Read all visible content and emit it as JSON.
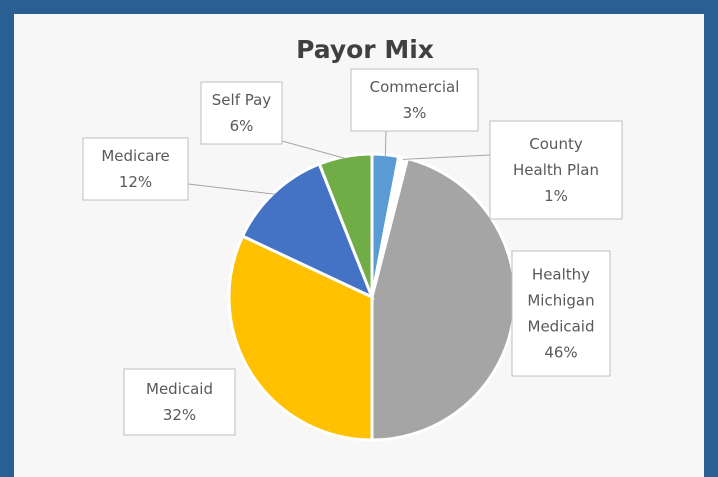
{
  "chart_data": {
    "type": "pie",
    "title": "Payor Mix",
    "slices": [
      {
        "label": "Commercial",
        "value": 3,
        "value_label": "3%",
        "color": "#5b9bd5"
      },
      {
        "label": "County Health Plan",
        "value": 1,
        "value_label": "1%",
        "color": "#ffffff"
      },
      {
        "label": "Healthy Michigan Medicaid",
        "value": 46,
        "value_label": "46%",
        "color": "#a5a5a5"
      },
      {
        "label": "Medicaid",
        "value": 32,
        "value_label": "32%",
        "color": "#ffc000"
      },
      {
        "label": "Medicare",
        "value": 12,
        "value_label": "12%",
        "color": "#4472c4"
      },
      {
        "label": "Self Pay",
        "value": 6,
        "value_label": "6%",
        "color": "#70ad47"
      }
    ]
  },
  "callouts": [
    {
      "lines": [
        "Commercial",
        "3%"
      ]
    },
    {
      "lines": [
        "County",
        "Health Plan",
        "1%"
      ]
    },
    {
      "lines": [
        "Healthy",
        "Michigan",
        "Medicaid",
        "46%"
      ]
    },
    {
      "lines": [
        "Medicaid",
        "32%"
      ]
    },
    {
      "lines": [
        "Medicare",
        "12%"
      ]
    },
    {
      "lines": [
        "Self Pay",
        "6%"
      ]
    }
  ]
}
